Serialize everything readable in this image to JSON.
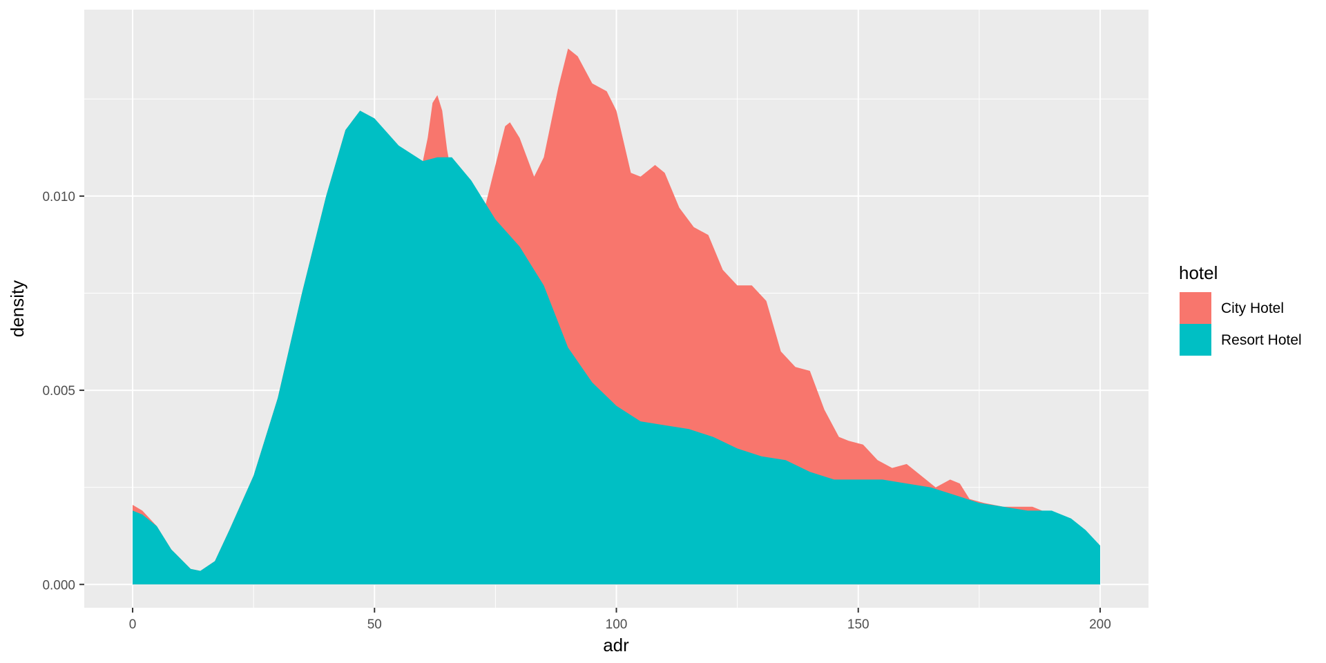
{
  "chart_data": {
    "type": "area",
    "xlabel": "adr",
    "ylabel": "density",
    "xlim": [
      -10,
      210
    ],
    "ylim": [
      -0.0006,
      0.0148
    ],
    "x_ticks": [
      0,
      50,
      100,
      150,
      200
    ],
    "x_tick_labels": [
      "0",
      "50",
      "100",
      "150",
      "200"
    ],
    "y_ticks": [
      0.0,
      0.005,
      0.01
    ],
    "y_tick_labels": [
      "0.000",
      "0.005",
      "0.010"
    ],
    "grid": true,
    "legend": {
      "title": "hotel",
      "position": "right",
      "entries": [
        "City Hotel",
        "Resort Hotel"
      ]
    },
    "series": [
      {
        "name": "City Hotel",
        "color": "#F8766D",
        "points": [
          [
            0,
            0.00205
          ],
          [
            2,
            0.0019
          ],
          [
            5,
            0.0015
          ],
          [
            8,
            0.0009
          ],
          [
            12,
            0.0004
          ],
          [
            14,
            0.00035
          ],
          [
            17,
            0.0006
          ],
          [
            20,
            0.0014
          ],
          [
            25,
            0.0028
          ],
          [
            30,
            0.0048
          ],
          [
            35,
            0.0075
          ],
          [
            40,
            0.01
          ],
          [
            44,
            0.0117
          ],
          [
            47,
            0.0122
          ],
          [
            50,
            0.012
          ],
          [
            55,
            0.0112
          ],
          [
            60,
            0.0109
          ],
          [
            61,
            0.0115
          ],
          [
            62,
            0.0124
          ],
          [
            63,
            0.0126
          ],
          [
            64,
            0.0122
          ],
          [
            65,
            0.0112
          ],
          [
            67,
            0.0098
          ],
          [
            70,
            0.0093
          ],
          [
            73,
            0.0098
          ],
          [
            75,
            0.0108
          ],
          [
            77,
            0.0118
          ],
          [
            78,
            0.0119
          ],
          [
            80,
            0.0115
          ],
          [
            83,
            0.0105
          ],
          [
            85,
            0.011
          ],
          [
            88,
            0.0128
          ],
          [
            90,
            0.0138
          ],
          [
            92,
            0.0136
          ],
          [
            95,
            0.0129
          ],
          [
            98,
            0.0127
          ],
          [
            100,
            0.0122
          ],
          [
            103,
            0.0106
          ],
          [
            105,
            0.0105
          ],
          [
            108,
            0.0108
          ],
          [
            110,
            0.0106
          ],
          [
            113,
            0.0097
          ],
          [
            116,
            0.0092
          ],
          [
            119,
            0.009
          ],
          [
            122,
            0.0081
          ],
          [
            125,
            0.0077
          ],
          [
            128,
            0.0077
          ],
          [
            131,
            0.0073
          ],
          [
            134,
            0.006
          ],
          [
            137,
            0.0056
          ],
          [
            140,
            0.0055
          ],
          [
            143,
            0.0045
          ],
          [
            146,
            0.0038
          ],
          [
            148,
            0.0037
          ],
          [
            151,
            0.0036
          ],
          [
            154,
            0.0032
          ],
          [
            157,
            0.003
          ],
          [
            160,
            0.0031
          ],
          [
            163,
            0.0028
          ],
          [
            166,
            0.0025
          ],
          [
            169,
            0.0027
          ],
          [
            171,
            0.0026
          ],
          [
            173,
            0.0022
          ],
          [
            176,
            0.0021
          ],
          [
            180,
            0.002
          ],
          [
            186,
            0.002
          ],
          [
            192,
            0.0017
          ],
          [
            196,
            0.0013
          ],
          [
            200,
            0.0009
          ]
        ]
      },
      {
        "name": "Resort Hotel",
        "color": "#00BFC4",
        "points": [
          [
            0,
            0.0019
          ],
          [
            2,
            0.0018
          ],
          [
            5,
            0.0015
          ],
          [
            8,
            0.0009
          ],
          [
            12,
            0.0004
          ],
          [
            14,
            0.00035
          ],
          [
            17,
            0.0006
          ],
          [
            20,
            0.0014
          ],
          [
            25,
            0.0028
          ],
          [
            30,
            0.0048
          ],
          [
            35,
            0.0075
          ],
          [
            40,
            0.01
          ],
          [
            44,
            0.0117
          ],
          [
            47,
            0.0122
          ],
          [
            50,
            0.012
          ],
          [
            55,
            0.0113
          ],
          [
            60,
            0.0109
          ],
          [
            63,
            0.011
          ],
          [
            66,
            0.011
          ],
          [
            70,
            0.0104
          ],
          [
            75,
            0.0094
          ],
          [
            80,
            0.0087
          ],
          [
            85,
            0.0077
          ],
          [
            90,
            0.0061
          ],
          [
            95,
            0.0052
          ],
          [
            100,
            0.0046
          ],
          [
            105,
            0.0042
          ],
          [
            110,
            0.0041
          ],
          [
            115,
            0.004
          ],
          [
            120,
            0.0038
          ],
          [
            125,
            0.0035
          ],
          [
            130,
            0.0033
          ],
          [
            135,
            0.0032
          ],
          [
            140,
            0.0029
          ],
          [
            145,
            0.0027
          ],
          [
            150,
            0.0027
          ],
          [
            155,
            0.0027
          ],
          [
            160,
            0.0026
          ],
          [
            165,
            0.0025
          ],
          [
            170,
            0.0023
          ],
          [
            175,
            0.0021
          ],
          [
            180,
            0.002
          ],
          [
            185,
            0.0019
          ],
          [
            190,
            0.0019
          ],
          [
            194,
            0.0017
          ],
          [
            197,
            0.0014
          ],
          [
            200,
            0.001
          ]
        ]
      }
    ]
  }
}
